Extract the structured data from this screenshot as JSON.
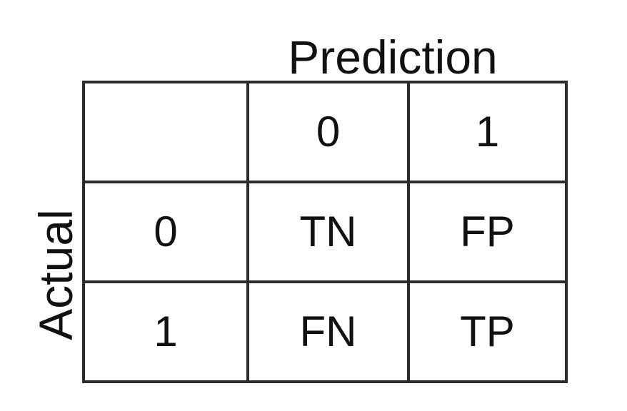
{
  "axis_labels": {
    "prediction": "Prediction",
    "actual": "Actual"
  },
  "matrix": {
    "corner": "",
    "column_headers": [
      "0",
      "1"
    ],
    "rows": [
      {
        "header": "0",
        "cells": [
          "TN",
          "FP"
        ]
      },
      {
        "header": "1",
        "cells": [
          "FN",
          "TP"
        ]
      }
    ]
  }
}
